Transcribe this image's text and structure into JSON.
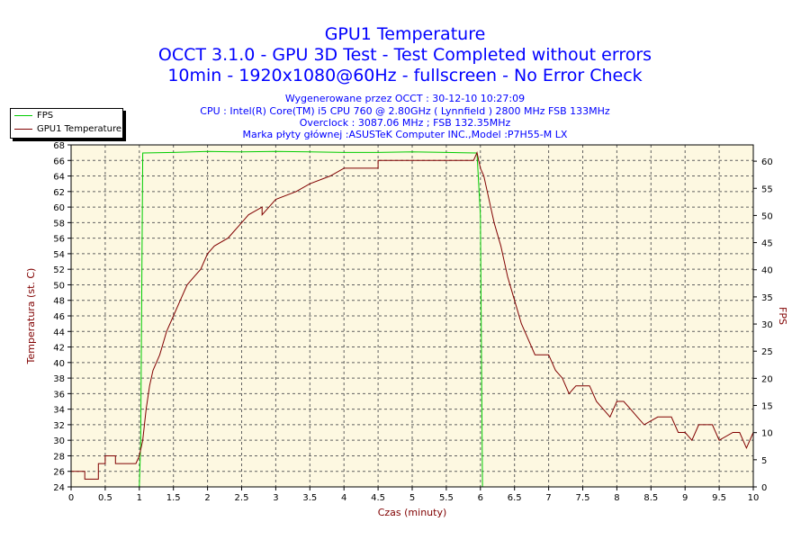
{
  "header": {
    "title": "GPU1 Temperature",
    "subtitle1": "OCCT 3.1.0 - GPU 3D Test - Test Completed without errors",
    "subtitle2": "10min - 1920x1080@60Hz - fullscreen - No Error Check",
    "info": [
      "Wygenerowane przez OCCT : 30-12-10 10:27:09",
      "CPU : Intel(R) Core(TM) i5 CPU 760 @ 2.80GHz ( Lynnfield ) 2800 MHz FSB 133MHz",
      "Overclock : 3087.06 MHz ; FSB 132.35MHz",
      "Marka płyty głównej :ASUSTeK Computer INC.,Model :P7H55-M LX"
    ]
  },
  "colors": {
    "fps": "#00cc00",
    "temperature": "#800000",
    "plot_bg": "#fdf8e1",
    "grid": "#606060",
    "title": "#0000ff"
  },
  "chart_data": {
    "type": "line",
    "title": "GPU1 Temperature",
    "xlabel": "Czas (minuty)",
    "ylabel_left": "Temperatura (st. C)",
    "ylabel_right": "FPS",
    "xlim": [
      0,
      10
    ],
    "ylim_left": [
      24,
      68
    ],
    "ylim_right": [
      0,
      63
    ],
    "x_ticks": [
      "0",
      "0.5",
      "1",
      "1.5",
      "2",
      "2.5",
      "3",
      "3.5",
      "4",
      "4.5",
      "5",
      "5.5",
      "6",
      "6.5",
      "7",
      "7.5",
      "8",
      "8.5",
      "9",
      "9.5",
      "10"
    ],
    "y_ticks_left": [
      "24",
      "26",
      "28",
      "30",
      "32",
      "34",
      "36",
      "38",
      "40",
      "42",
      "44",
      "46",
      "48",
      "50",
      "52",
      "54",
      "56",
      "58",
      "60",
      "62",
      "64",
      "66",
      "68"
    ],
    "y_ticks_right": [
      "0",
      "5",
      "10",
      "15",
      "20",
      "25",
      "30",
      "35",
      "40",
      "45",
      "50",
      "55",
      "60"
    ],
    "grid": true,
    "legend": "top-left, outside plot",
    "series": [
      {
        "name": "FPS",
        "axis": "right",
        "points": [
          [
            0,
            0
          ],
          [
            1.0,
            0
          ],
          [
            1.02,
            8
          ],
          [
            1.05,
            61.5
          ],
          [
            1.5,
            61.6
          ],
          [
            2.0,
            61.8
          ],
          [
            2.5,
            61.7
          ],
          [
            3.0,
            61.8
          ],
          [
            3.5,
            61.7
          ],
          [
            4.0,
            61.6
          ],
          [
            4.5,
            61.6
          ],
          [
            5.0,
            61.7
          ],
          [
            5.5,
            61.6
          ],
          [
            5.95,
            61.5
          ],
          [
            6.0,
            50
          ],
          [
            6.03,
            0
          ],
          [
            10,
            0
          ]
        ]
      },
      {
        "name": "GPU1 Temperature",
        "axis": "left",
        "points": [
          [
            0,
            26
          ],
          [
            0.2,
            26
          ],
          [
            0.2,
            25
          ],
          [
            0.4,
            25
          ],
          [
            0.4,
            27
          ],
          [
            0.5,
            27
          ],
          [
            0.5,
            28
          ],
          [
            0.65,
            28
          ],
          [
            0.65,
            27
          ],
          [
            0.95,
            27
          ],
          [
            1.0,
            28
          ],
          [
            1.05,
            30
          ],
          [
            1.1,
            34
          ],
          [
            1.15,
            37
          ],
          [
            1.2,
            39
          ],
          [
            1.3,
            41
          ],
          [
            1.4,
            44
          ],
          [
            1.5,
            46
          ],
          [
            1.6,
            48
          ],
          [
            1.7,
            50
          ],
          [
            1.8,
            51
          ],
          [
            1.9,
            52
          ],
          [
            2.0,
            54
          ],
          [
            2.1,
            55
          ],
          [
            2.3,
            56
          ],
          [
            2.4,
            57
          ],
          [
            2.5,
            58
          ],
          [
            2.6,
            59
          ],
          [
            2.8,
            60
          ],
          [
            2.8,
            59
          ],
          [
            3.0,
            61
          ],
          [
            3.3,
            62
          ],
          [
            3.5,
            63
          ],
          [
            3.8,
            64
          ],
          [
            4.0,
            65
          ],
          [
            4.5,
            65
          ],
          [
            4.5,
            66
          ],
          [
            5.0,
            66
          ],
          [
            5.3,
            66
          ],
          [
            5.9,
            66
          ],
          [
            5.95,
            67
          ],
          [
            6.0,
            65
          ],
          [
            6.05,
            64
          ],
          [
            6.1,
            62
          ],
          [
            6.2,
            58
          ],
          [
            6.3,
            55
          ],
          [
            6.4,
            51
          ],
          [
            6.5,
            48
          ],
          [
            6.6,
            45
          ],
          [
            6.7,
            43
          ],
          [
            6.8,
            41
          ],
          [
            7.0,
            41
          ],
          [
            7.1,
            39
          ],
          [
            7.2,
            38
          ],
          [
            7.3,
            36
          ],
          [
            7.4,
            37
          ],
          [
            7.6,
            37
          ],
          [
            7.7,
            35
          ],
          [
            7.8,
            34
          ],
          [
            7.9,
            33
          ],
          [
            8.0,
            35
          ],
          [
            8.1,
            35
          ],
          [
            8.2,
            34
          ],
          [
            8.3,
            33
          ],
          [
            8.4,
            32
          ],
          [
            8.6,
            33
          ],
          [
            8.8,
            33
          ],
          [
            8.9,
            31
          ],
          [
            9.0,
            31
          ],
          [
            9.1,
            30
          ],
          [
            9.2,
            32
          ],
          [
            9.4,
            32
          ],
          [
            9.5,
            30
          ],
          [
            9.7,
            31
          ],
          [
            9.8,
            31
          ],
          [
            9.9,
            29
          ],
          [
            10,
            31
          ]
        ]
      }
    ]
  }
}
